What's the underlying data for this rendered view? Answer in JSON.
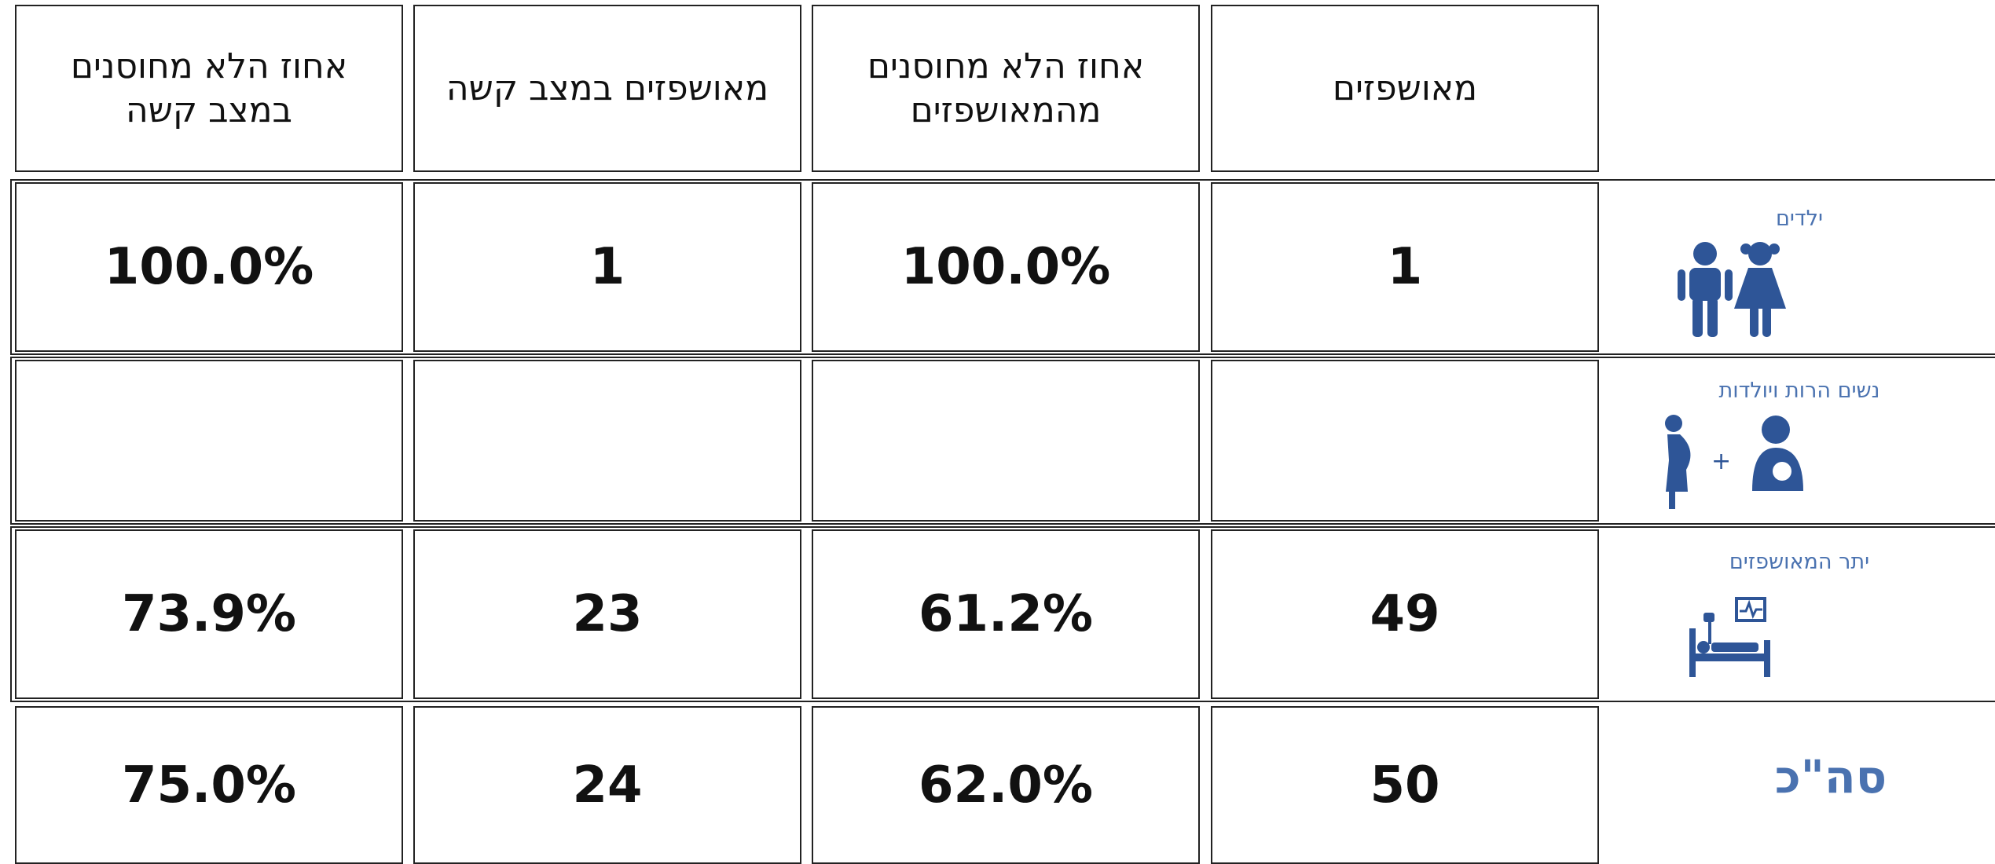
{
  "table": {
    "headers": [
      "מאושפזים",
      "אחוז הלא מחוסנים מהמאושפזים",
      "מאושפזים במצב קשה",
      "אחוז הלא מחוסנים במצב קשה"
    ],
    "rows": [
      {
        "label": "ילדים",
        "cells": [
          "1",
          "100.0%",
          "1",
          "100.0%"
        ]
      },
      {
        "label": "נשים הרות ויולדות",
        "cells": [
          null,
          null,
          null,
          null
        ]
      },
      {
        "label": "יתר המאושפזים",
        "cells": [
          "49",
          "61.2%",
          "23",
          "73.9%"
        ]
      },
      {
        "label": "סה\"כ",
        "cells": [
          "50",
          "62.0%",
          "24",
          "75.0%"
        ]
      }
    ]
  }
}
